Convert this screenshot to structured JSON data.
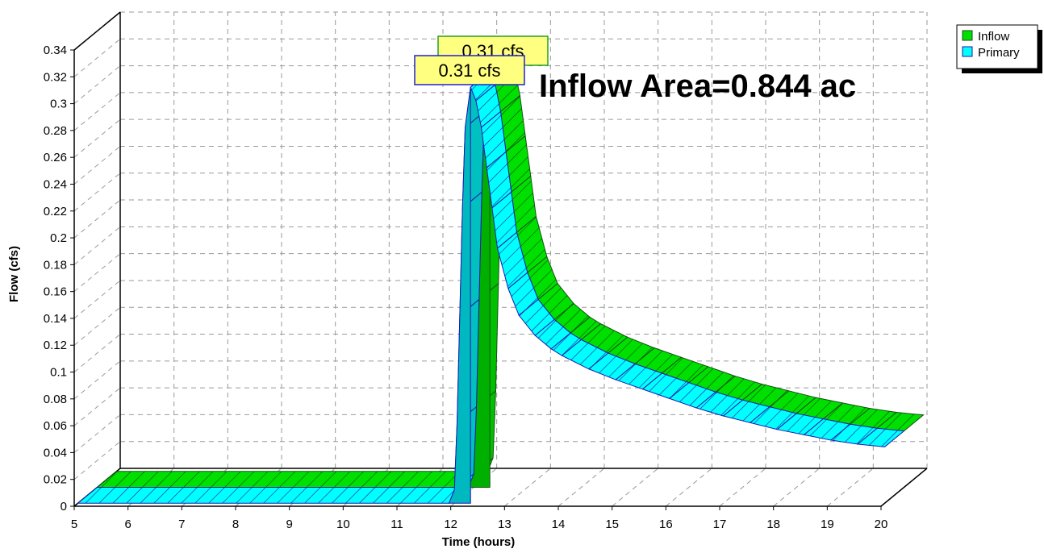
{
  "chart_data": {
    "type": "area",
    "title": "",
    "xlabel": "Time  (hours)",
    "ylabel": "Flow  (cfs)",
    "xlim": [
      5,
      20
    ],
    "ylim": [
      0,
      0.34
    ],
    "x_ticks": [
      "5",
      "6",
      "7",
      "8",
      "9",
      "10",
      "11",
      "12",
      "13",
      "14",
      "15",
      "16",
      "17",
      "18",
      "19",
      "20"
    ],
    "y_ticks": [
      "0",
      "0.02",
      "0.04",
      "0.06",
      "0.08",
      "0.1",
      "0.12",
      "0.14",
      "0.16",
      "0.18",
      "0.2",
      "0.22",
      "0.24",
      "0.26",
      "0.28",
      "0.3",
      "0.32",
      "0.34"
    ],
    "grid": true,
    "legend_position": "top-right",
    "annotation": "Inflow Area=0.844 ac",
    "series": [
      {
        "name": "Inflow",
        "color": "#00e000",
        "peak_label": "0.31 cfs",
        "x": [
          5,
          11.9,
          12.0,
          12.05,
          12.1,
          12.15,
          12.2,
          12.3,
          12.4,
          12.5,
          12.6,
          12.7,
          12.8,
          13,
          13.2,
          13.5,
          13.8,
          14,
          14.5,
          15,
          15.5,
          16,
          16.5,
          17,
          17.5,
          18,
          18.5,
          19,
          19.5,
          20
        ],
        "values": [
          0,
          0,
          0.01,
          0.06,
          0.14,
          0.22,
          0.28,
          0.31,
          0.3,
          0.28,
          0.25,
          0.22,
          0.19,
          0.16,
          0.14,
          0.125,
          0.115,
          0.11,
          0.1,
          0.092,
          0.085,
          0.078,
          0.071,
          0.065,
          0.06,
          0.055,
          0.051,
          0.047,
          0.044,
          0.042
        ]
      },
      {
        "name": "Primary",
        "color": "#00ffff",
        "peak_label": "0.31 cfs",
        "x": [
          5,
          11.9,
          12.0,
          12.05,
          12.1,
          12.15,
          12.2,
          12.3,
          12.4,
          12.5,
          12.6,
          12.7,
          12.8,
          13,
          13.2,
          13.5,
          13.8,
          14,
          14.5,
          15,
          15.5,
          16,
          16.5,
          17,
          17.5,
          18,
          18.5,
          19,
          19.5,
          20
        ],
        "values": [
          0,
          0,
          0.01,
          0.06,
          0.14,
          0.22,
          0.28,
          0.31,
          0.3,
          0.28,
          0.25,
          0.22,
          0.19,
          0.16,
          0.14,
          0.125,
          0.115,
          0.11,
          0.1,
          0.092,
          0.085,
          0.078,
          0.071,
          0.065,
          0.06,
          0.055,
          0.051,
          0.047,
          0.044,
          0.042
        ]
      }
    ]
  }
}
